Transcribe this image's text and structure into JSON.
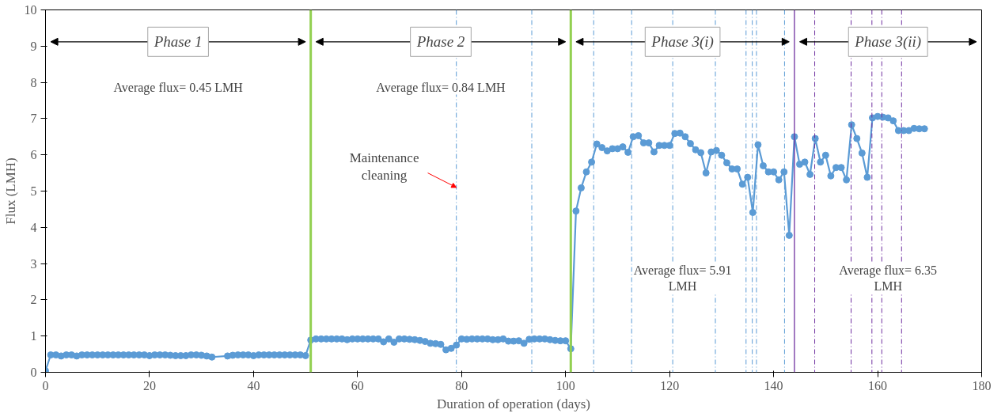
{
  "chart_data": {
    "type": "line",
    "xlabel": "Duration of operation (days)",
    "ylabel": "Flux (LMH)",
    "xlim": [
      0,
      180
    ],
    "xticks": [
      0,
      20,
      40,
      60,
      80,
      100,
      120,
      140,
      160,
      180
    ],
    "ylim": [
      0,
      10
    ],
    "yticks": [
      0,
      1,
      2,
      3,
      4,
      5,
      6,
      7,
      8,
      9,
      10
    ],
    "grid": false,
    "marker": "circle",
    "line_style": "solid",
    "series": [
      {
        "color": "#5b9bd5",
        "x": [
          0,
          1,
          2,
          3,
          4,
          5,
          6,
          7,
          8,
          9,
          10,
          11,
          12,
          13,
          14,
          15,
          16,
          17,
          18,
          19,
          20,
          21,
          22,
          23,
          24,
          25,
          26,
          27,
          28,
          29,
          30,
          31,
          32,
          35,
          36,
          37,
          38,
          39,
          40,
          41,
          42,
          43,
          44,
          45,
          46,
          47,
          48,
          49,
          50,
          51,
          52,
          53,
          54,
          55,
          56,
          57,
          58,
          59,
          60,
          61,
          62,
          63,
          64,
          65,
          66,
          67,
          68,
          69,
          70,
          71,
          72,
          73,
          74,
          75,
          76,
          77,
          78,
          79,
          80,
          81,
          82,
          83,
          84,
          85,
          86,
          87,
          88,
          89,
          90,
          91,
          92,
          93,
          94,
          95,
          96,
          97,
          98,
          99,
          100,
          101,
          102,
          103,
          104,
          105,
          106,
          107,
          108,
          109,
          110,
          111,
          112,
          113,
          114,
          115,
          116,
          117,
          118,
          119,
          120,
          121,
          122,
          123,
          124,
          125,
          126,
          127,
          128,
          129,
          130,
          131,
          132,
          133,
          134,
          135,
          136,
          137,
          138,
          139,
          140,
          141,
          142,
          143,
          144,
          145,
          146,
          147,
          148,
          149,
          150,
          151,
          152,
          153,
          154,
          155,
          156,
          157,
          158,
          159,
          160,
          161,
          162,
          163,
          164,
          165,
          166,
          167,
          168,
          169
        ],
        "values": [
          0.04,
          0.48,
          0.48,
          0.45,
          0.48,
          0.48,
          0.45,
          0.48,
          0.48,
          0.48,
          0.48,
          0.48,
          0.48,
          0.48,
          0.48,
          0.48,
          0.48,
          0.48,
          0.48,
          0.48,
          0.46,
          0.48,
          0.48,
          0.48,
          0.47,
          0.46,
          0.46,
          0.46,
          0.48,
          0.48,
          0.47,
          0.45,
          0.42,
          0.45,
          0.47,
          0.48,
          0.48,
          0.48,
          0.46,
          0.48,
          0.48,
          0.48,
          0.48,
          0.48,
          0.48,
          0.48,
          0.48,
          0.48,
          0.46,
          0.89,
          0.92,
          0.92,
          0.92,
          0.92,
          0.92,
          0.92,
          0.9,
          0.92,
          0.92,
          0.92,
          0.92,
          0.92,
          0.92,
          0.84,
          0.92,
          0.83,
          0.92,
          0.92,
          0.91,
          0.9,
          0.88,
          0.85,
          0.8,
          0.79,
          0.77,
          0.62,
          0.66,
          0.75,
          0.92,
          0.91,
          0.92,
          0.92,
          0.92,
          0.92,
          0.9,
          0.9,
          0.92,
          0.86,
          0.86,
          0.87,
          0.8,
          0.91,
          0.92,
          0.92,
          0.92,
          0.9,
          0.88,
          0.87,
          0.87,
          0.65,
          4.45,
          5.09,
          5.53,
          5.8,
          6.3,
          6.2,
          6.11,
          6.17,
          6.17,
          6.22,
          6.07,
          6.5,
          6.53,
          6.33,
          6.33,
          6.08,
          6.26,
          6.26,
          6.26,
          6.59,
          6.6,
          6.5,
          6.31,
          6.14,
          6.06,
          5.5,
          6.08,
          6.12,
          5.99,
          5.78,
          5.61,
          5.61,
          5.19,
          5.38,
          4.41,
          6.28,
          5.7,
          5.53,
          5.53,
          5.31,
          5.53,
          3.78,
          6.5,
          5.74,
          5.8,
          5.46,
          6.45,
          5.8,
          5.99,
          5.42,
          5.65,
          5.65,
          5.31,
          6.83,
          6.45,
          6.05,
          5.38,
          7.02,
          7.06,
          7.04,
          7.02,
          6.94,
          6.67,
          6.67,
          6.67,
          6.73,
          6.72,
          6.72
        ]
      }
    ],
    "ref_lines": [
      {
        "axis": "x",
        "value": 51,
        "color": "#92d050",
        "line_style": "solid"
      },
      {
        "axis": "x",
        "value": 101,
        "color": "#92d050",
        "line_style": "solid"
      },
      {
        "axis": "x",
        "value": 144,
        "color": "#7030a0",
        "line_style": "solid"
      },
      {
        "axis": "x",
        "value": 79,
        "color": "#5b9bd5",
        "line_style": "dashed"
      },
      {
        "axis": "x",
        "value": 93.5,
        "color": "#5b9bd5",
        "line_style": "dashed"
      },
      {
        "axis": "x",
        "value": 105.4,
        "color": "#5b9bd5",
        "line_style": "dashed"
      },
      {
        "axis": "x",
        "value": 112.7,
        "color": "#5b9bd5",
        "line_style": "dashed"
      },
      {
        "axis": "x",
        "value": 120.6,
        "color": "#5b9bd5",
        "line_style": "dashed"
      },
      {
        "axis": "x",
        "value": 128.8,
        "color": "#5b9bd5",
        "line_style": "dashed"
      },
      {
        "axis": "x",
        "value": 134.7,
        "color": "#5b9bd5",
        "line_style": "dashed"
      },
      {
        "axis": "x",
        "value": 135.9,
        "color": "#5b9bd5",
        "line_style": "dashed"
      },
      {
        "axis": "x",
        "value": 136.7,
        "color": "#5b9bd5",
        "line_style": "dashed"
      },
      {
        "axis": "x",
        "value": 142.1,
        "color": "#5b9bd5",
        "line_style": "dashed"
      },
      {
        "axis": "x",
        "value": 147.9,
        "color": "#7030a0",
        "line_style": "dashed"
      },
      {
        "axis": "x",
        "value": 154.9,
        "color": "#7030a0",
        "line_style": "dashed"
      },
      {
        "axis": "x",
        "value": 158.9,
        "color": "#7030a0",
        "line_style": "dashed"
      },
      {
        "axis": "x",
        "value": 160.8,
        "color": "#7030a0",
        "line_style": "dashed"
      },
      {
        "axis": "x",
        "value": 164.6,
        "color": "#7030a0",
        "line_style": "dashed"
      }
    ],
    "annotations": [
      "Phase 1",
      "Phase 2",
      "Phase 3(i)",
      "Phase 3(ii)",
      "Average flux= 0.45 LMH",
      "Average flux= 0.84 LMH",
      "Average flux= 5.91\nLMH",
      "Average flux= 6.35\nLMH",
      {
        "text": "Maintenance\ncleaning",
        "x": 79,
        "y": 5.1
      }
    ]
  }
}
